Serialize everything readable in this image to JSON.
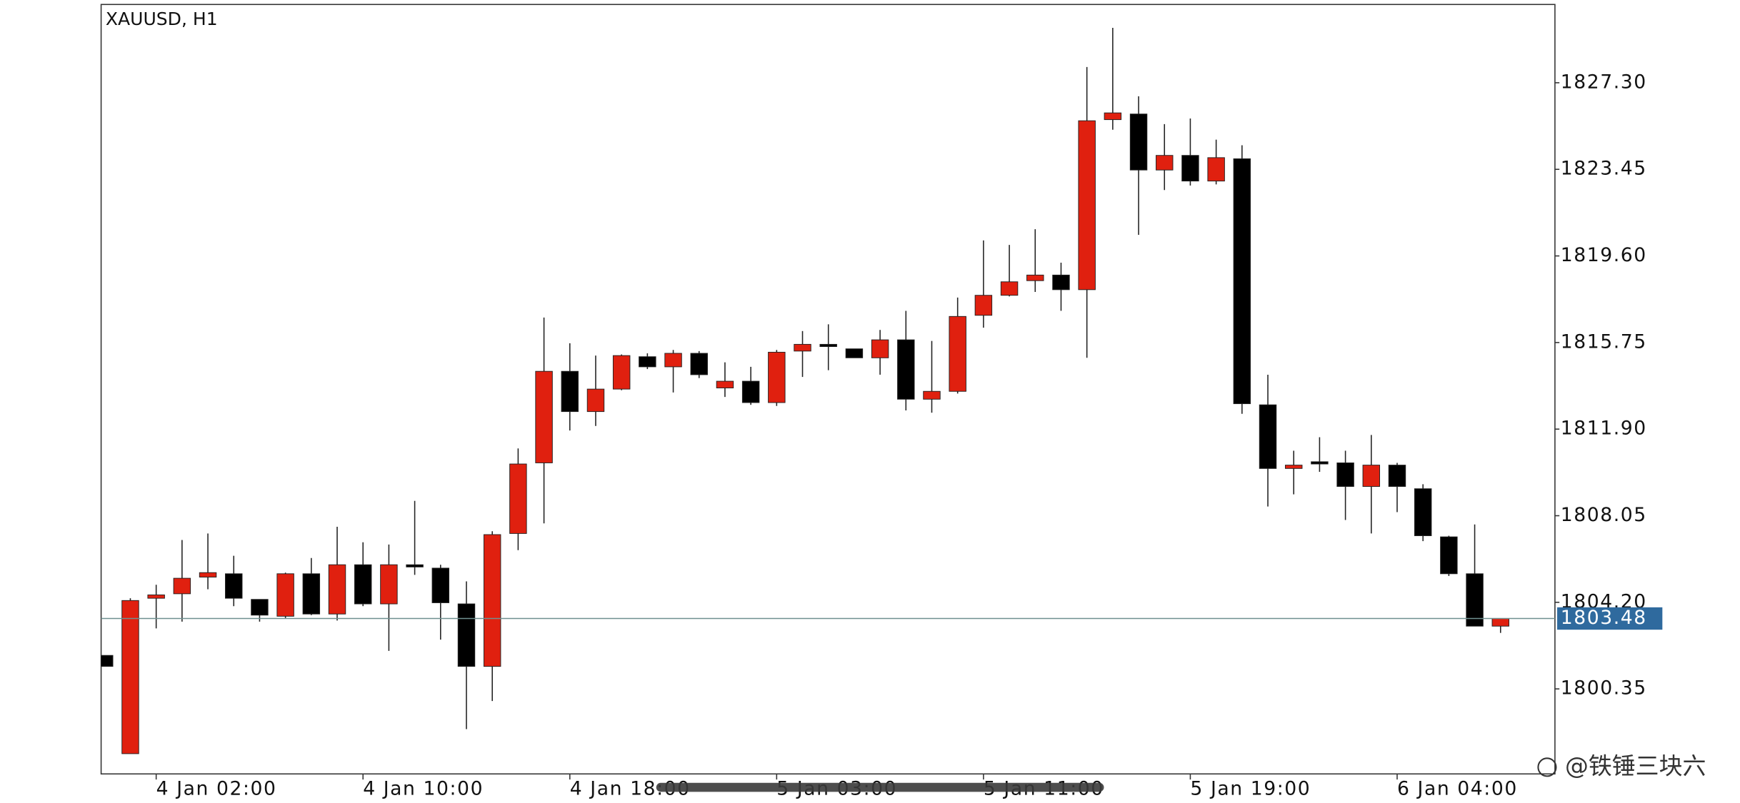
{
  "chart_data": {
    "type": "candlestick",
    "title": "XAUUSD, H1",
    "watermark": "@铁锤三块六",
    "categories": [
      null,
      null,
      "4 Jan 02:00",
      null,
      null,
      null,
      null,
      null,
      null,
      null,
      "4 Jan 10:00",
      null,
      null,
      null,
      null,
      null,
      null,
      null,
      "4 Jan 18:00",
      null,
      null,
      null,
      null,
      null,
      null,
      null,
      "5 Jan 03:00",
      null,
      null,
      null,
      null,
      null,
      null,
      null,
      "5 Jan 11:00",
      null,
      null,
      null,
      null,
      null,
      null,
      null,
      "5 Jan 19:00",
      null,
      null,
      null,
      null,
      null,
      null,
      null,
      "6 Jan 04:00",
      null,
      null,
      null,
      null
    ],
    "open": [
      1801.84,
      1797.47,
      1804.38,
      1804.58,
      1805.32,
      1805.47,
      1804.33,
      1803.58,
      1805.47,
      1803.68,
      1805.87,
      1804.13,
      1805.87,
      1805.72,
      1804.13,
      1801.35,
      1807.26,
      1810.4,
      1814.47,
      1812.68,
      1813.68,
      1815.12,
      1814.67,
      1815.27,
      1813.73,
      1814.03,
      1813.08,
      1815.37,
      1815.67,
      1815.47,
      1815.07,
      1815.87,
      1813.23,
      1813.58,
      1816.96,
      1817.85,
      1818.5,
      1818.75,
      1818.1,
      1825.66,
      1825.91,
      1823.42,
      1824.07,
      1822.93,
      1823.92,
      1812.98,
      1810.15,
      1810.45,
      1810.4,
      1809.35,
      1810.3,
      1809.25,
      1807.11,
      1805.47,
      1803.14
    ],
    "high": [
      1801.84,
      1804.38,
      1804.98,
      1806.97,
      1807.26,
      1806.27,
      1804.33,
      1805.52,
      1806.17,
      1807.56,
      1806.87,
      1806.77,
      1808.71,
      1805.87,
      1805.13,
      1807.36,
      1811.04,
      1816.86,
      1815.72,
      1815.17,
      1815.22,
      1815.27,
      1815.42,
      1815.37,
      1814.87,
      1814.67,
      1815.42,
      1816.26,
      1816.56,
      1815.47,
      1816.31,
      1817.16,
      1815.82,
      1817.75,
      1820.29,
      1820.09,
      1820.79,
      1819.3,
      1828.0,
      1829.74,
      1826.7,
      1825.46,
      1825.71,
      1824.77,
      1824.52,
      1814.32,
      1810.94,
      1811.54,
      1810.94,
      1811.64,
      1810.4,
      1809.45,
      1807.16,
      1807.66,
      1803.48
    ],
    "low": [
      1801.35,
      1797.47,
      1803.04,
      1803.34,
      1804.78,
      1804.03,
      1803.34,
      1803.48,
      1803.63,
      1803.39,
      1804.03,
      1802.04,
      1805.42,
      1802.54,
      1798.56,
      1799.81,
      1806.52,
      1807.71,
      1811.84,
      1812.04,
      1813.63,
      1814.57,
      1813.53,
      1814.17,
      1813.33,
      1812.98,
      1812.93,
      1814.22,
      1814.52,
      1815.07,
      1814.32,
      1812.73,
      1812.63,
      1813.48,
      1816.41,
      1817.8,
      1818.0,
      1817.16,
      1815.07,
      1825.21,
      1820.54,
      1822.53,
      1822.73,
      1822.78,
      1812.58,
      1808.46,
      1809.0,
      1810.0,
      1807.86,
      1807.26,
      1808.21,
      1806.92,
      1805.37,
      1803.14,
      1802.84
    ],
    "close": [
      1801.35,
      1804.28,
      1804.53,
      1805.27,
      1805.52,
      1804.38,
      1803.63,
      1805.47,
      1803.68,
      1805.87,
      1804.13,
      1805.87,
      1805.77,
      1804.18,
      1801.35,
      1807.21,
      1810.35,
      1814.47,
      1812.68,
      1813.68,
      1815.17,
      1814.67,
      1815.27,
      1814.32,
      1814.03,
      1813.08,
      1815.32,
      1815.67,
      1815.57,
      1815.07,
      1815.87,
      1813.23,
      1813.58,
      1816.91,
      1817.85,
      1818.45,
      1818.75,
      1818.1,
      1825.61,
      1825.96,
      1823.42,
      1824.07,
      1822.93,
      1823.97,
      1813.03,
      1810.15,
      1810.3,
      1810.35,
      1809.35,
      1810.3,
      1809.35,
      1807.16,
      1805.47,
      1803.14,
      1803.48
    ],
    "up_color": "#e0200f",
    "down_color": "#000000",
    "last_price": 1803.48,
    "last_price_color": "#2f6a9e",
    "ylim": [
      1796.57,
      1830.78
    ],
    "yticks": [
      {
        "value": 1827.3,
        "label": "1827.30"
      },
      {
        "value": 1823.45,
        "label": "1823.45"
      },
      {
        "value": 1819.6,
        "label": "1819.60"
      },
      {
        "value": 1815.75,
        "label": "1815.75"
      },
      {
        "value": 1811.9,
        "label": "1811.90"
      },
      {
        "value": 1808.05,
        "label": "1808.05"
      },
      {
        "value": 1804.2,
        "label": "1804.20"
      },
      {
        "value": 1800.35,
        "label": "1800.35"
      }
    ]
  }
}
